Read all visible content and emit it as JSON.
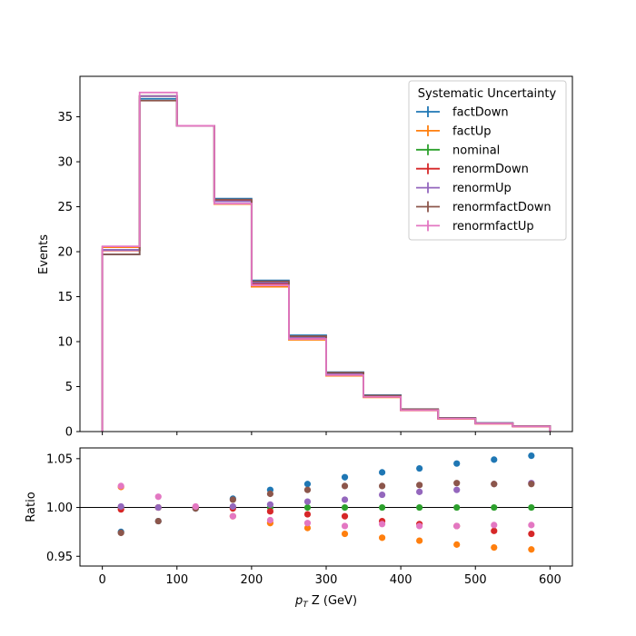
{
  "chart_data": [
    {
      "type": "line",
      "subtype": "step-histogram",
      "title": "",
      "xlabel": "",
      "ylabel": "Events",
      "xlim": [
        -30,
        630
      ],
      "ylim": [
        0,
        39.5
      ],
      "bin_edges": [
        0,
        50,
        100,
        150,
        200,
        250,
        300,
        350,
        400,
        450,
        500,
        550,
        600
      ],
      "xticks": [
        0,
        100,
        200,
        300,
        400,
        500,
        600
      ],
      "yticks": [
        0,
        5,
        10,
        15,
        20,
        25,
        30,
        35
      ],
      "legend": {
        "title": "Systematic Uncertainty",
        "placement": "top-right"
      },
      "series": [
        {
          "name": "factDown",
          "color": "#1f77b4",
          "values": [
            19.7,
            37.0,
            34.0,
            25.9,
            16.8,
            10.7,
            6.6,
            4.05,
            2.5,
            1.52,
            0.96,
            0.61
          ]
        },
        {
          "name": "factUp",
          "color": "#ff7f0e",
          "values": [
            20.5,
            37.3,
            34.0,
            25.3,
            16.1,
            10.2,
            6.2,
            3.8,
            2.35,
            1.42,
            0.88,
            0.56
          ]
        },
        {
          "name": "nominal",
          "color": "#2ca02c",
          "values": [
            20.2,
            37.3,
            34.0,
            25.6,
            16.5,
            10.45,
            6.4,
            3.93,
            2.42,
            1.47,
            0.91,
            0.59
          ]
        },
        {
          "name": "renormDown",
          "color": "#d62728",
          "values": [
            20.15,
            37.3,
            34.0,
            25.65,
            16.45,
            10.4,
            6.35,
            3.88,
            2.38,
            1.44,
            0.89,
            0.57
          ]
        },
        {
          "name": "renormUp",
          "color": "#9467bd",
          "values": [
            20.2,
            37.3,
            34.0,
            25.6,
            16.55,
            10.5,
            6.45,
            3.98,
            2.45,
            1.5,
            0.93,
            0.6
          ]
        },
        {
          "name": "renormfactDown",
          "color": "#8c564b",
          "values": [
            19.7,
            36.8,
            34.0,
            25.8,
            16.7,
            10.6,
            6.55,
            4.0,
            2.48,
            1.5,
            0.93,
            0.6
          ]
        },
        {
          "name": "renormfactUp",
          "color": "#e377c2",
          "values": [
            20.6,
            37.7,
            34.0,
            25.35,
            16.25,
            10.3,
            6.28,
            3.86,
            2.38,
            1.44,
            0.89,
            0.57
          ]
        }
      ]
    },
    {
      "type": "scatter",
      "title": "",
      "xlabel": "p_T Z (GeV)",
      "xlabel_main": "p",
      "xlabel_sub": "T",
      "xlabel_rest": " Z (GeV)",
      "ylabel": "Ratio",
      "xlim": [
        -30,
        630
      ],
      "ylim": [
        0.94,
        1.061
      ],
      "reference_line": 1.0,
      "xticks": [
        0,
        100,
        200,
        300,
        400,
        500,
        600
      ],
      "yticks": [
        0.95,
        1.0,
        1.05
      ],
      "ytick_labels": [
        "0.95",
        "1.00",
        "1.05"
      ],
      "x": [
        25,
        75,
        125,
        175,
        225,
        275,
        325,
        375,
        425,
        475,
        525,
        575
      ],
      "series": [
        {
          "name": "factDown",
          "color": "#1f77b4",
          "values": [
            0.975,
            0.986,
            0.999,
            1.009,
            1.018,
            1.024,
            1.031,
            1.036,
            1.04,
            1.045,
            1.049,
            1.053
          ]
        },
        {
          "name": "factUp",
          "color": "#ff7f0e",
          "values": [
            1.021,
            1.0,
            1.0,
            0.991,
            0.984,
            0.979,
            0.973,
            0.969,
            0.966,
            0.962,
            0.959,
            0.957
          ]
        },
        {
          "name": "nominal",
          "color": "#2ca02c",
          "values": [
            1.0,
            1.0,
            1.0,
            1.0,
            1.0,
            1.0,
            1.0,
            1.0,
            1.0,
            1.0,
            1.0,
            1.0
          ]
        },
        {
          "name": "renormDown",
          "color": "#d62728",
          "values": [
            0.998,
            1.0,
            1.0,
            0.999,
            0.996,
            0.993,
            0.991,
            0.986,
            0.983,
            0.981,
            0.976,
            0.973
          ]
        },
        {
          "name": "renormUp",
          "color": "#9467bd",
          "values": [
            1.001,
            1.0,
            1.0,
            1.001,
            1.003,
            1.006,
            1.008,
            1.013,
            1.016,
            1.018,
            1.024,
            1.025
          ]
        },
        {
          "name": "renormfactDown",
          "color": "#8c564b",
          "values": [
            0.974,
            0.986,
            0.999,
            1.008,
            1.014,
            1.018,
            1.022,
            1.022,
            1.023,
            1.025,
            1.024,
            1.024
          ]
        },
        {
          "name": "renormfactUp",
          "color": "#e377c2",
          "values": [
            1.022,
            1.011,
            1.001,
            0.991,
            0.987,
            0.984,
            0.981,
            0.983,
            0.981,
            0.981,
            0.982,
            0.982
          ]
        }
      ]
    }
  ]
}
